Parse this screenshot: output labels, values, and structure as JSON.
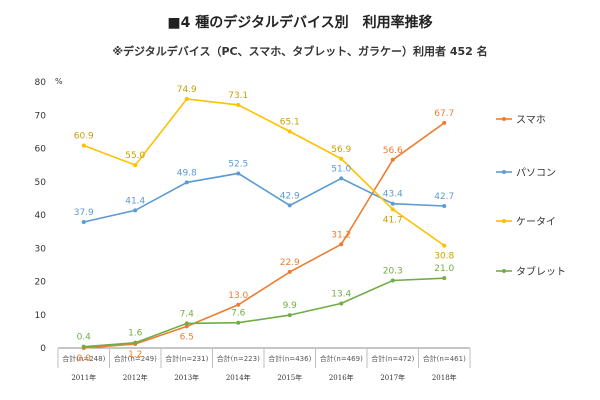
{
  "title": "■4 種のデジタルデバイス別　利用率推移",
  "subtitle": "※デジタルデバイス（PC、スマホ、タブレット、ガラケー）利用者 452 名",
  "chart_data": {
    "type": "line",
    "title": "■4 種のデジタルデバイス別　利用率推移",
    "subtitle": "※デジタルデバイス（PC、スマホ、タブレット、ガラケー）利用者 452 名",
    "y_unit": "%",
    "ylim": [
      0,
      80
    ],
    "y_ticks": [
      "0",
      "10",
      "20",
      "30",
      "40",
      "50",
      "60",
      "70",
      "80"
    ],
    "grid": false,
    "legend_position": "right",
    "categories": [
      "合計(n=248)",
      "合計(n=249)",
      "合計(n=231)",
      "合計(n=223)",
      "合計(n=436)",
      "合計(n=469)",
      "合計(n=472)",
      "合計(n=461)"
    ],
    "years": [
      "2011年",
      "2012年",
      "2013年",
      "2014年",
      "2015年",
      "2016年",
      "2017年",
      "2018年"
    ],
    "series": [
      {
        "name": "スマホ",
        "color": "#ED7D31",
        "values": [
          0.0,
          1.2,
          6.5,
          13.0,
          22.9,
          31.2,
          56.6,
          67.7
        ],
        "labels": [
          "0.0",
          "1.2",
          "6.5",
          "13.0",
          "22.9",
          "31.2",
          "56.6",
          "67.7"
        ]
      },
      {
        "name": "パソコン",
        "color": "#5B9BD5",
        "values": [
          37.9,
          41.4,
          49.8,
          52.5,
          42.9,
          51.0,
          43.4,
          42.7
        ],
        "labels": [
          "37.9",
          "41.4",
          "49.8",
          "52.5",
          "42.9",
          "51.0",
          "43.4",
          "42.7"
        ]
      },
      {
        "name": "ケータイ",
        "color": "#FFC000",
        "values": [
          60.9,
          55.0,
          74.9,
          73.1,
          65.1,
          56.9,
          41.7,
          30.8
        ],
        "labels": [
          "60.9",
          "55.0",
          "74.9",
          "73.1",
          "65.1",
          "56.9",
          "41.7",
          "30.8"
        ]
      },
      {
        "name": "タブレット",
        "color": "#70AD47",
        "values": [
          0.4,
          1.6,
          7.4,
          7.6,
          9.9,
          13.4,
          20.3,
          21.0
        ],
        "labels": [
          "0.4",
          "1.6",
          "7.4",
          "7.6",
          "9.9",
          "13.4",
          "20.3",
          "21.0"
        ]
      }
    ]
  }
}
